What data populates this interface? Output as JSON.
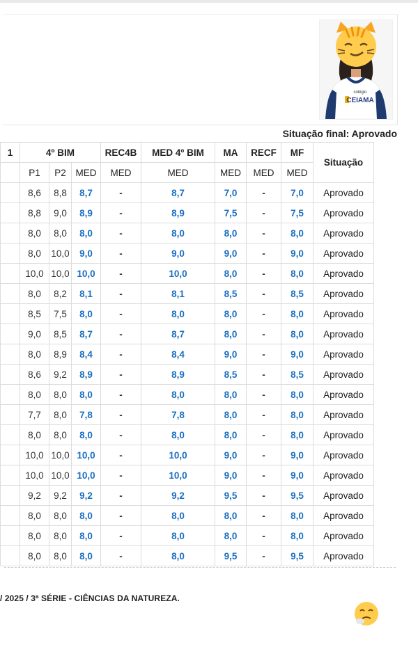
{
  "status": {
    "label": "Situação final:",
    "value": "Aprovado"
  },
  "header": {
    "cut_col": "1",
    "bim": "4º BIM",
    "rec4b": "REC4B",
    "med4bim": "MED 4º BIM",
    "ma": "MA",
    "recf": "RECF",
    "mf": "MF",
    "situacao": "Situação",
    "sub": {
      "p1": "P1",
      "p2": "P2",
      "med": "MED"
    }
  },
  "rows": [
    {
      "p1": "8,6",
      "p2": "8,8",
      "med": "8,7",
      "rec": "-",
      "med4": "8,7",
      "ma": "7,0",
      "recf": "-",
      "mf": "7,0",
      "sit": "Aprovado"
    },
    {
      "p1": "8,8",
      "p2": "9,0",
      "med": "8,9",
      "rec": "-",
      "med4": "8,9",
      "ma": "7,5",
      "recf": "-",
      "mf": "7,5",
      "sit": "Aprovado"
    },
    {
      "p1": "8,0",
      "p2": "8,0",
      "med": "8,0",
      "rec": "-",
      "med4": "8,0",
      "ma": "8,0",
      "recf": "-",
      "mf": "8,0",
      "sit": "Aprovado"
    },
    {
      "p1": "8,0",
      "p2": "10,0",
      "med": "9,0",
      "rec": "-",
      "med4": "9,0",
      "ma": "9,0",
      "recf": "-",
      "mf": "9,0",
      "sit": "Aprovado"
    },
    {
      "p1": "10,0",
      "p2": "10,0",
      "med": "10,0",
      "rec": "-",
      "med4": "10,0",
      "ma": "8,0",
      "recf": "-",
      "mf": "8,0",
      "sit": "Aprovado"
    },
    {
      "p1": "8,0",
      "p2": "8,2",
      "med": "8,1",
      "rec": "-",
      "med4": "8,1",
      "ma": "8,5",
      "recf": "-",
      "mf": "8,5",
      "sit": "Aprovado"
    },
    {
      "p1": "8,5",
      "p2": "7,5",
      "med": "8,0",
      "rec": "-",
      "med4": "8,0",
      "ma": "8,0",
      "recf": "-",
      "mf": "8,0",
      "sit": "Aprovado"
    },
    {
      "p1": "9,0",
      "p2": "8,5",
      "med": "8,7",
      "rec": "-",
      "med4": "8,7",
      "ma": "8,0",
      "recf": "-",
      "mf": "8,0",
      "sit": "Aprovado"
    },
    {
      "p1": "8,0",
      "p2": "8,9",
      "med": "8,4",
      "rec": "-",
      "med4": "8,4",
      "ma": "9,0",
      "recf": "-",
      "mf": "9,0",
      "sit": "Aprovado"
    },
    {
      "p1": "8,6",
      "p2": "9,2",
      "med": "8,9",
      "rec": "-",
      "med4": "8,9",
      "ma": "8,5",
      "recf": "-",
      "mf": "8,5",
      "sit": "Aprovado"
    },
    {
      "p1": "8,0",
      "p2": "8,0",
      "med": "8,0",
      "rec": "-",
      "med4": "8,0",
      "ma": "8,0",
      "recf": "-",
      "mf": "8,0",
      "sit": "Aprovado"
    },
    {
      "p1": "7,7",
      "p2": "8,0",
      "med": "7,8",
      "rec": "-",
      "med4": "7,8",
      "ma": "8,0",
      "recf": "-",
      "mf": "8,0",
      "sit": "Aprovado"
    },
    {
      "p1": "8,0",
      "p2": "8,0",
      "med": "8,0",
      "rec": "-",
      "med4": "8,0",
      "ma": "8,0",
      "recf": "-",
      "mf": "8,0",
      "sit": "Aprovado"
    },
    {
      "p1": "10,0",
      "p2": "10,0",
      "med": "10,0",
      "rec": "-",
      "med4": "10,0",
      "ma": "9,0",
      "recf": "-",
      "mf": "9,0",
      "sit": "Aprovado"
    },
    {
      "p1": "10,0",
      "p2": "10,0",
      "med": "10,0",
      "rec": "-",
      "med4": "10,0",
      "ma": "9,0",
      "recf": "-",
      "mf": "9,0",
      "sit": "Aprovado"
    },
    {
      "p1": "9,2",
      "p2": "9,2",
      "med": "9,2",
      "rec": "-",
      "med4": "9,2",
      "ma": "9,5",
      "recf": "-",
      "mf": "9,5",
      "sit": "Aprovado"
    },
    {
      "p1": "8,0",
      "p2": "8,0",
      "med": "8,0",
      "rec": "-",
      "med4": "8,0",
      "ma": "8,0",
      "recf": "-",
      "mf": "8,0",
      "sit": "Aprovado"
    },
    {
      "p1": "8,0",
      "p2": "8,0",
      "med": "8,0",
      "rec": "-",
      "med4": "8,0",
      "ma": "8,0",
      "recf": "-",
      "mf": "8,0",
      "sit": "Aprovado"
    },
    {
      "p1": "8,0",
      "p2": "8,0",
      "med": "8,0",
      "rec": "-",
      "med4": "8,0",
      "ma": "9,5",
      "recf": "-",
      "mf": "9,5",
      "sit": "Aprovado"
    }
  ],
  "footer": {
    "text": "/ 2025 / 3ª SÉRIE - CIÊNCIAS DA NATUREZA."
  },
  "photo": {
    "shirt_text_small": "colégio",
    "shirt_text_big": "CEIAMA"
  },
  "colors": {
    "value_blue": "#1a6fc2",
    "border": "#dcdcdc"
  }
}
